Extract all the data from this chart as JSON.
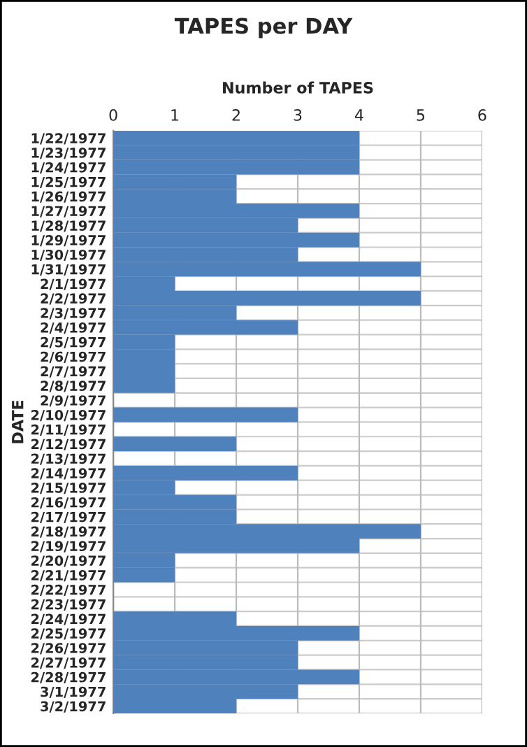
{
  "chart_data": {
    "type": "bar",
    "orientation": "horizontal",
    "title": "TAPES per DAY",
    "xlabel": "Number of TAPES",
    "ylabel": "DATE",
    "categories": [
      "1/22/1977",
      "1/23/1977",
      "1/24/1977",
      "1/25/1977",
      "1/26/1977",
      "1/27/1977",
      "1/28/1977",
      "1/29/1977",
      "1/30/1977",
      "1/31/1977",
      "2/1/1977",
      "2/2/1977",
      "2/3/1977",
      "2/4/1977",
      "2/5/1977",
      "2/6/1977",
      "2/7/1977",
      "2/8/1977",
      "2/9/1977",
      "2/10/1977",
      "2/11/1977",
      "2/12/1977",
      "2/13/1977",
      "2/14/1977",
      "2/15/1977",
      "2/16/1977",
      "2/17/1977",
      "2/18/1977",
      "2/19/1977",
      "2/20/1977",
      "2/21/1977",
      "2/22/1977",
      "2/23/1977",
      "2/24/1977",
      "2/25/1977",
      "2/26/1977",
      "2/27/1977",
      "2/28/1977",
      "3/1/1977",
      "3/2/1977"
    ],
    "values": [
      4,
      4,
      4,
      2,
      2,
      4,
      3,
      4,
      3,
      5,
      1,
      5,
      2,
      3,
      1,
      1,
      1,
      1,
      0,
      3,
      0,
      2,
      0,
      3,
      1,
      2,
      2,
      5,
      4,
      1,
      1,
      0,
      0,
      2,
      4,
      3,
      3,
      4,
      3,
      2
    ],
    "color": "#4f81bd",
    "xlim": [
      0,
      6
    ],
    "xticks": [
      0,
      1,
      2,
      3,
      4,
      5,
      6
    ],
    "grid": true
  }
}
